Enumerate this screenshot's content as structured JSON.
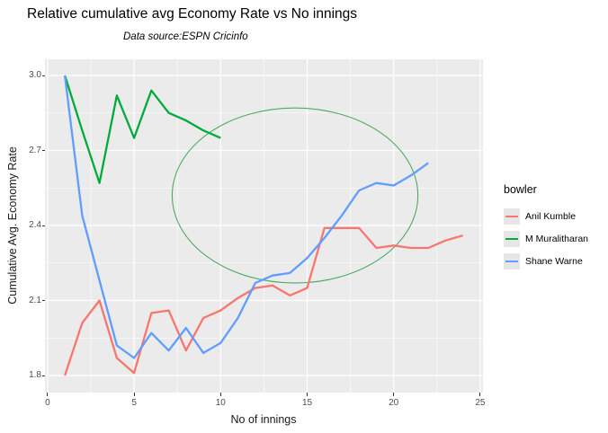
{
  "title": "Relative cumulative avg Economy Rate vs No innings",
  "subtitle": "Data source:ESPN Cricinfo",
  "x_axis": {
    "title": "No of innings",
    "tick_labels": [
      "0",
      "5",
      "10",
      "15",
      "20",
      "25"
    ]
  },
  "y_axis": {
    "title": "Cumulative Avg. Economy Rate",
    "tick_labels": [
      "1.8",
      "2.1",
      "2.4",
      "2.7",
      "3.0"
    ]
  },
  "legend": {
    "title": "bowler"
  },
  "panel": {
    "background": "#EBEBEB",
    "grid_color": "#FFFFFF"
  },
  "chart_data": {
    "type": "line",
    "title": "Relative cumulative avg Economy Rate vs No innings",
    "subtitle": "Data source:ESPN Cricinfo",
    "xlabel": "No of innings",
    "ylabel": "Cumulative Avg. Economy Rate",
    "xlim": [
      -0.15,
      25.15
    ],
    "ylim": [
      1.73,
      3.07
    ],
    "x_ticks": [
      0,
      5,
      10,
      15,
      20,
      25
    ],
    "y_ticks": [
      1.8,
      2.1,
      2.4,
      2.7,
      3.0
    ],
    "grid": "major+minor",
    "legend_position": "right",
    "series": [
      {
        "name": "Anil Kumble",
        "color": "#F8766D",
        "x": [
          1,
          2,
          3,
          4,
          5,
          6,
          7,
          8,
          9,
          10,
          11,
          12,
          13,
          14,
          15,
          16,
          17,
          18,
          19,
          20,
          21,
          22,
          23,
          24
        ],
        "values": [
          1.8,
          2.01,
          2.1,
          1.87,
          1.81,
          2.05,
          2.06,
          1.9,
          2.03,
          2.06,
          2.11,
          2.15,
          2.16,
          2.12,
          2.15,
          2.39,
          2.39,
          2.39,
          2.31,
          2.32,
          2.31,
          2.31,
          2.34,
          2.36
        ]
      },
      {
        "name": "M Muralitharan",
        "color": "#00AB3C",
        "x": [
          1,
          2,
          3,
          4,
          5,
          6,
          7,
          8,
          9,
          10
        ],
        "values": [
          3.0,
          2.78,
          2.57,
          2.92,
          2.75,
          2.94,
          2.85,
          2.82,
          2.78,
          2.75
        ]
      },
      {
        "name": "Shane Warne",
        "color": "#619CFF",
        "x": [
          1,
          2,
          3,
          4,
          5,
          6,
          7,
          8,
          9,
          10,
          11,
          12,
          13,
          14,
          15,
          16,
          17,
          18,
          19,
          20,
          21,
          22
        ],
        "values": [
          3.0,
          2.44,
          2.18,
          1.92,
          1.87,
          1.97,
          1.9,
          1.99,
          1.89,
          1.93,
          2.03,
          2.17,
          2.2,
          2.21,
          2.27,
          2.35,
          2.44,
          2.54,
          2.57,
          2.56,
          2.6,
          2.65
        ]
      }
    ],
    "annotation": {
      "shape": "ellipse",
      "center_innings": 14.3,
      "center_value": 2.52,
      "rx_innings": 7.1,
      "ry_value": 0.35,
      "color": "#4CAB63"
    }
  }
}
